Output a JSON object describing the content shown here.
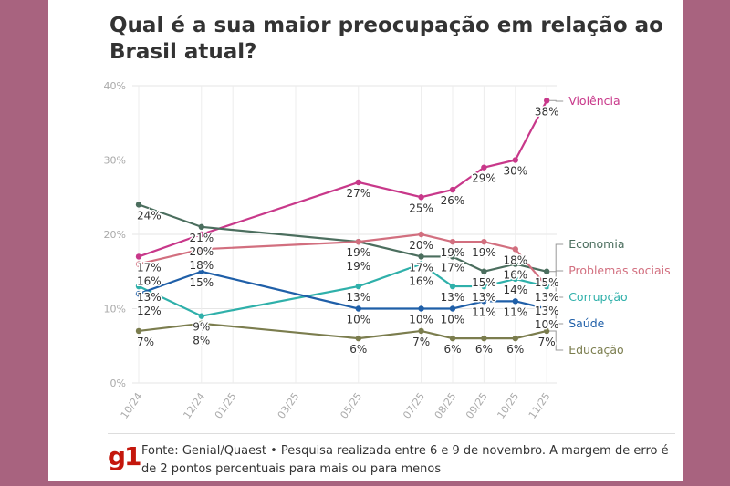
{
  "chart_data": {
    "type": "line",
    "title": "Qual é a sua maior preocupação em relação ao Brasil atual?",
    "x_ticks": [
      "10/24",
      "12/24",
      "01/25",
      "03/25",
      "05/25",
      "07/25",
      "08/25",
      "09/25",
      "10/25",
      "11/25"
    ],
    "x": [
      "10/24",
      "12/24",
      "05/25",
      "07/25",
      "08/25",
      "09/25",
      "10/25",
      "11/25"
    ],
    "y_ticks": [
      "0%",
      "10%",
      "20%",
      "30%",
      "40%"
    ],
    "ylim": [
      0,
      40
    ],
    "grid": true,
    "legend": "right end labels",
    "series": [
      {
        "name": "Violência",
        "color": "#c8388a",
        "values": [
          17,
          20,
          27,
          25,
          26,
          29,
          30,
          38
        ]
      },
      {
        "name": "Economia",
        "color": "#4b6e5e",
        "values": [
          24,
          21,
          19,
          17,
          17,
          15,
          16,
          15
        ]
      },
      {
        "name": "Problemas sociais",
        "color": "#d26f7f",
        "values": [
          16,
          18,
          19,
          20,
          19,
          19,
          18,
          13
        ]
      },
      {
        "name": "Corrupção",
        "color": "#2fb0aa",
        "values": [
          13,
          9,
          13,
          16,
          13,
          13,
          14,
          13
        ]
      },
      {
        "name": "Saúde",
        "color": "#1f5fa8",
        "values": [
          12,
          15,
          10,
          10,
          10,
          11,
          11,
          10
        ]
      },
      {
        "name": "Educação",
        "color": "#7b7d4e",
        "values": [
          7,
          8,
          6,
          7,
          6,
          6,
          6,
          7
        ]
      }
    ]
  },
  "footer": {
    "logo": "g1",
    "source": "Fonte: Genial/Quaest • Pesquisa realizada entre 6 e 9 de novembro. A margem de erro é de 2 pontos percentuais para mais ou para menos"
  }
}
